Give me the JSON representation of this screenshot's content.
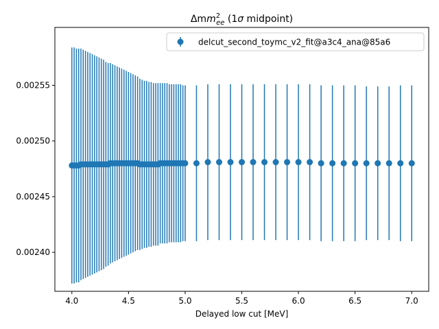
{
  "chart_data": {
    "type": "errorbar",
    "title_prefix": "Δm",
    "title_sup": "2",
    "title_sub": "ee",
    "title_suffix_a": " (1",
    "title_sigma": "σ",
    "title_suffix_b": " midpoint)",
    "xlabel": "Delayed low cut [MeV]",
    "ylabel": "",
    "xlim": [
      3.85,
      7.15
    ],
    "ylim": [
      0.002365,
      0.002602
    ],
    "xticks": [
      4.0,
      4.5,
      5.0,
      5.5,
      6.0,
      6.5,
      7.0
    ],
    "xtick_labels": [
      "4.0",
      "4.5",
      "5.0",
      "5.5",
      "6.0",
      "6.5",
      "7.0"
    ],
    "yticks": [
      0.0024,
      0.00245,
      0.0025,
      0.00255
    ],
    "ytick_labels": [
      "0.00240",
      "0.00245",
      "0.00250",
      "0.00255"
    ],
    "grid": false,
    "legend_position": "top-right",
    "color": "#1f77b4",
    "series": [
      {
        "name": "delcut_second_toymc_v2_fit@a3c4_ana@85a6",
        "x": [
          4.0,
          4.02,
          4.04,
          4.06,
          4.08,
          4.1,
          4.12,
          4.14,
          4.16,
          4.18,
          4.2,
          4.22,
          4.24,
          4.26,
          4.28,
          4.3,
          4.32,
          4.34,
          4.36,
          4.38,
          4.4,
          4.42,
          4.44,
          4.46,
          4.48,
          4.5,
          4.52,
          4.54,
          4.56,
          4.58,
          4.6,
          4.62,
          4.64,
          4.66,
          4.68,
          4.7,
          4.72,
          4.74,
          4.76,
          4.78,
          4.8,
          4.82,
          4.84,
          4.86,
          4.88,
          4.9,
          4.92,
          4.94,
          4.96,
          4.98,
          5.0,
          5.1,
          5.2,
          5.3,
          5.4,
          5.5,
          5.6,
          5.7,
          5.8,
          5.9,
          6.0,
          6.1,
          6.2,
          6.3,
          6.4,
          6.5,
          6.6,
          6.7,
          6.8,
          6.9,
          7.0
        ],
        "y": [
          0.002478,
          0.002478,
          0.002478,
          0.002478,
          0.002479,
          0.002479,
          0.002479,
          0.002479,
          0.002479,
          0.002479,
          0.002479,
          0.002479,
          0.002479,
          0.002479,
          0.002479,
          0.002479,
          0.002479,
          0.00248,
          0.00248,
          0.00248,
          0.00248,
          0.00248,
          0.00248,
          0.00248,
          0.00248,
          0.00248,
          0.00248,
          0.00248,
          0.00248,
          0.00248,
          0.002479,
          0.002479,
          0.002479,
          0.002479,
          0.002479,
          0.002479,
          0.002479,
          0.002479,
          0.002479,
          0.00248,
          0.00248,
          0.00248,
          0.00248,
          0.00248,
          0.00248,
          0.00248,
          0.00248,
          0.00248,
          0.00248,
          0.00248,
          0.00248,
          0.00248,
          0.002481,
          0.002481,
          0.002481,
          0.002481,
          0.002481,
          0.002481,
          0.002481,
          0.002481,
          0.002481,
          0.002481,
          0.00248,
          0.00248,
          0.00248,
          0.00248,
          0.00248,
          0.00248,
          0.00248,
          0.00248,
          0.00248
        ],
        "yerr": [
          0.000106,
          0.000106,
          0.000105,
          0.000105,
          0.000104,
          0.000103,
          0.000102,
          0.000101,
          0.0001,
          9.9e-05,
          9.8e-05,
          9.7e-05,
          9.6e-05,
          9.5e-05,
          9.4e-05,
          9.2e-05,
          9.1e-05,
          9e-05,
          8.9e-05,
          8.8e-05,
          8.7e-05,
          8.6e-05,
          8.5e-05,
          8.4e-05,
          8.3e-05,
          8.2e-05,
          8.1e-05,
          8e-05,
          7.9e-05,
          7.8e-05,
          7.7e-05,
          7.6e-05,
          7.5e-05,
          7.5e-05,
          7.4e-05,
          7.4e-05,
          7.3e-05,
          7.3e-05,
          7.3e-05,
          7.2e-05,
          7.2e-05,
          7.2e-05,
          7.2e-05,
          7.1e-05,
          7.1e-05,
          7.1e-05,
          7.1e-05,
          7.1e-05,
          7.1e-05,
          7e-05,
          7e-05,
          7e-05,
          7e-05,
          7e-05,
          7e-05,
          7e-05,
          7e-05,
          7e-05,
          7e-05,
          7e-05,
          7e-05,
          7e-05,
          7e-05,
          7e-05,
          7e-05,
          7e-05,
          6.9e-05,
          6.9e-05,
          6.9e-05,
          7e-05,
          7e-05
        ]
      }
    ]
  }
}
